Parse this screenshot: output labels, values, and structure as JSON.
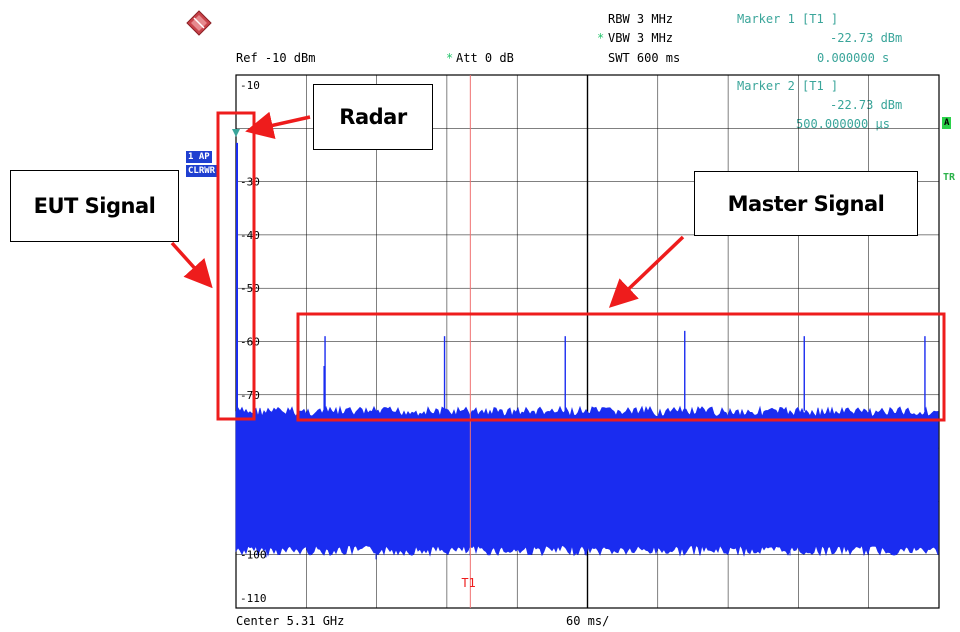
{
  "header": {
    "rbw": "RBW 3 MHz",
    "vbw": "VBW 3 MHz",
    "swt": "SWT 600 ms",
    "ref": "Ref -10 dBm",
    "att": "Att  0 dB",
    "vbw_star": "*",
    "att_star": "*"
  },
  "markers": [
    {
      "label": "Marker 1 [T1 ]",
      "level": "-22.73 dBm",
      "time": "0.000000 s"
    },
    {
      "label": "Marker 2 [T1 ]",
      "level": "-22.73 dBm",
      "time": "500.000000 µs"
    }
  ],
  "side_labels": {
    "trace_mode": "1 AP",
    "clear_write": "CLRWR",
    "right_box": "A",
    "right_text": "TR"
  },
  "footer": {
    "center": "Center 5.31 GHz",
    "span": "60 ms/"
  },
  "marker_line_label": "T1",
  "callouts": {
    "radar": "Radar",
    "eut": "EUT Signal",
    "master": "Master Signal"
  },
  "colors": {
    "trace": "#1a2cf0",
    "annotation": "#ee1c1c",
    "marker_line": "#f07070",
    "marker_text": "#3aa59a",
    "grid": "#000000"
  },
  "chart_data": {
    "type": "line",
    "title": "",
    "xlabel": "",
    "ylabel": "",
    "x_unit": "ms",
    "x_range": [
      0,
      600
    ],
    "ylim": [
      -110,
      -10
    ],
    "y_unit": "dBm",
    "y_ticks": [
      -10,
      -20,
      -30,
      -40,
      -50,
      -60,
      -70,
      -80,
      -90,
      -100,
      -110
    ],
    "y_tick_labels": [
      "-10",
      "",
      "-30",
      "-40",
      "-50",
      "-60",
      "-70",
      "",
      "",
      "-100",
      "-110"
    ],
    "grid": true,
    "noise_floor": {
      "upper_dbm": -73,
      "lower_dbm": -99
    },
    "eut_signal": {
      "x_ms": 0.5,
      "peak_dbm": -22.73
    },
    "master_pulses": [
      {
        "x_ms": 76,
        "peak_dbm": -59
      },
      {
        "x_ms": 178,
        "peak_dbm": -59
      },
      {
        "x_ms": 281,
        "peak_dbm": -59
      },
      {
        "x_ms": 383,
        "peak_dbm": -58
      },
      {
        "x_ms": 485,
        "peak_dbm": -59
      },
      {
        "x_ms": 588,
        "peak_dbm": -59
      }
    ],
    "marker_t1_x_ms": 200
  }
}
